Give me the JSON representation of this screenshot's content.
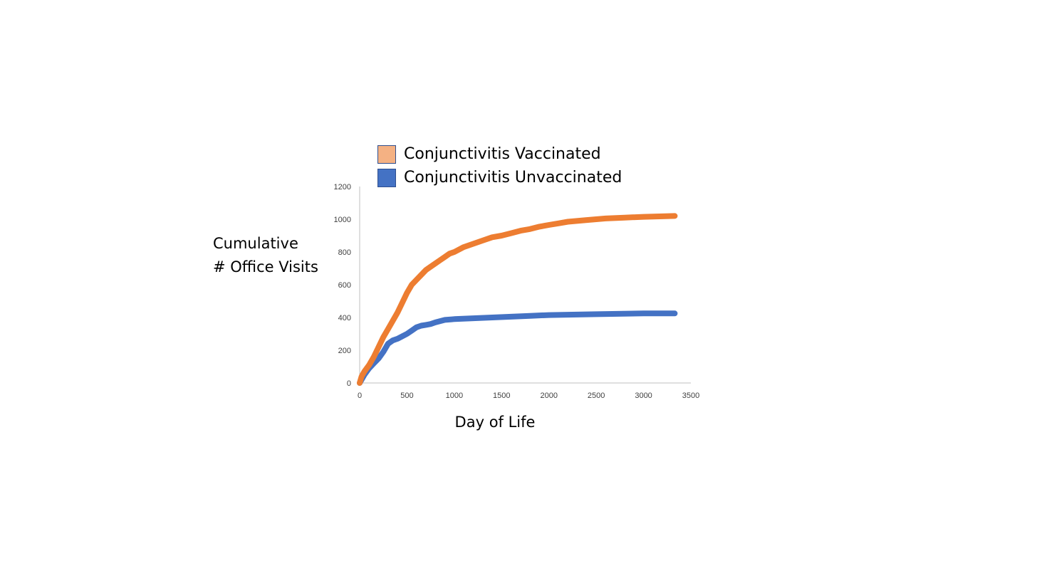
{
  "chart_data": {
    "type": "line",
    "title": "",
    "xlabel": "Day of Life",
    "ylabel_lines": [
      "Cumulative",
      "# Office Visits"
    ],
    "xlim": [
      0,
      3500
    ],
    "ylim": [
      0,
      1200
    ],
    "x_ticks": [
      0,
      500,
      1000,
      1500,
      2000,
      2500,
      3000,
      3500
    ],
    "y_ticks": [
      0,
      200,
      400,
      600,
      800,
      1000,
      1200
    ],
    "grid": false,
    "legend_position": "top",
    "series": [
      {
        "name": "Conjunctivitis Vaccinated",
        "line_color": "#ED7D31",
        "legend_color": "#F4B183",
        "x": [
          0,
          20,
          50,
          100,
          150,
          200,
          250,
          300,
          350,
          400,
          450,
          500,
          550,
          600,
          650,
          700,
          750,
          800,
          850,
          900,
          950,
          1000,
          1100,
          1200,
          1300,
          1400,
          1500,
          1600,
          1700,
          1800,
          1900,
          2000,
          2100,
          2200,
          2400,
          2600,
          2800,
          3000,
          3200,
          3330
        ],
        "y": [
          0,
          40,
          70,
          110,
          160,
          220,
          280,
          330,
          380,
          430,
          490,
          550,
          600,
          630,
          660,
          690,
          710,
          730,
          750,
          770,
          790,
          800,
          830,
          850,
          870,
          890,
          900,
          915,
          930,
          940,
          955,
          965,
          975,
          985,
          995,
          1005,
          1010,
          1015,
          1018,
          1020
        ]
      },
      {
        "name": "Conjunctivitis Unvaccinated",
        "line_color": "#4472C4",
        "legend_color": "#4472C4",
        "x": [
          0,
          20,
          50,
          100,
          150,
          200,
          250,
          300,
          350,
          400,
          450,
          500,
          550,
          600,
          650,
          700,
          750,
          800,
          900,
          1000,
          1200,
          1400,
          1600,
          1800,
          2000,
          2500,
          3000,
          3330
        ],
        "y": [
          0,
          20,
          50,
          90,
          120,
          150,
          190,
          240,
          260,
          270,
          285,
          300,
          320,
          340,
          350,
          355,
          360,
          370,
          385,
          390,
          395,
          400,
          405,
          410,
          415,
          420,
          425,
          425
        ]
      }
    ]
  }
}
